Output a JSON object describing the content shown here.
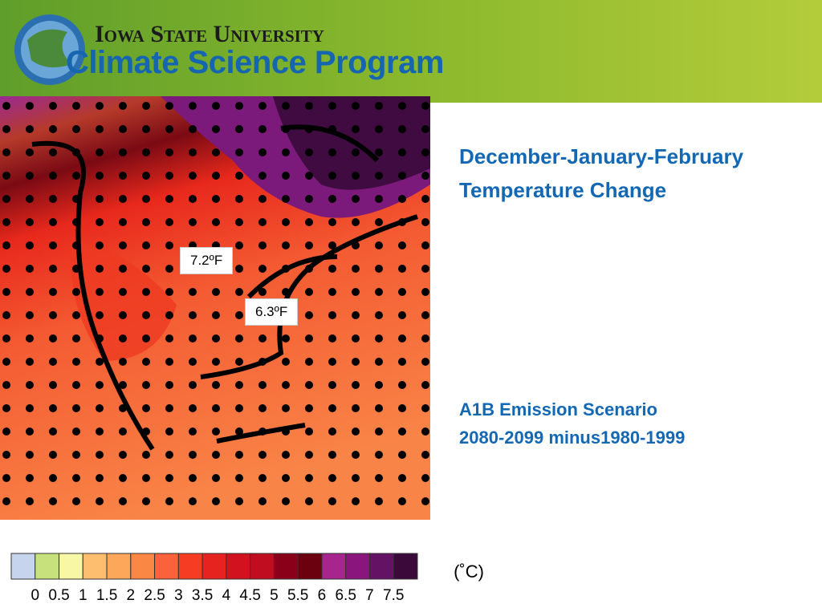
{
  "header": {
    "university": "Iowa State University",
    "program": "Climate Science Program"
  },
  "title": [
    "December-January-February",
    "Temperature Change"
  ],
  "scenario": [
    "A1B Emission Scenario",
    "2080-2099 minus1980-1999"
  ],
  "map": {
    "labels": [
      "7.2ºF",
      "6.3ºF"
    ]
  },
  "colorbar": {
    "ticks": [
      "0",
      "0.5",
      "1",
      "1.5",
      "2",
      "2.5",
      "3",
      "3.5",
      "4",
      "4.5",
      "5",
      "5.5",
      "6",
      "6.5",
      "7",
      "7.5"
    ],
    "colors": [
      "#c6d4ee",
      "#c7e27c",
      "#f7f7a6",
      "#fdbf6f",
      "#fda75a",
      "#fb8745",
      "#f9623a",
      "#f63c22",
      "#e6231f",
      "#d3121f",
      "#c00d1f",
      "#8b0019",
      "#6b000f",
      "#a8258d",
      "#8a157c",
      "#641263",
      "#3c0a3a"
    ],
    "unit": "(˚C)"
  }
}
